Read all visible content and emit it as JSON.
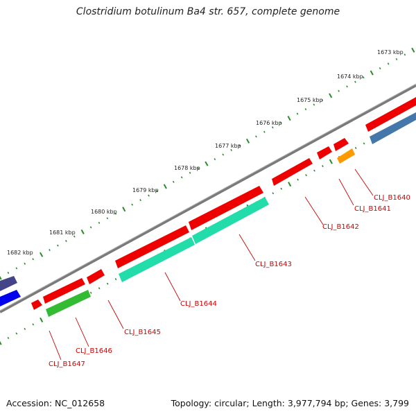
{
  "title": "Clostridium botulinum Ba4 str. 657, complete genome",
  "footer": {
    "accession": "Accession: NC_012658",
    "topology": "Topology: circular; Length: 3,977,794 bp; Genes: 3,799"
  },
  "ruler": {
    "labels": [
      "1673 kbp",
      "1674 kbp",
      "1675 kbp",
      "1676 kbp",
      "1677 kbp",
      "1678 kbp",
      "1679 kbp",
      "1680 kbp",
      "1681 kbp",
      "1682 kbp"
    ]
  },
  "colors": {
    "backbone": "#7a7a7a",
    "tick": "#2a8a2a",
    "gene_red": "#ee0000",
    "gene_teal": "#22ddaa",
    "gene_green": "#33bb33",
    "gene_orange": "#ff9900",
    "gene_steel": "#4477aa",
    "gene_blue": "#0000ee",
    "gene_slate": "#444488",
    "label": "#cc0000"
  },
  "genes": [
    {
      "label": "CLJ_B1640",
      "color": "gene_red"
    },
    {
      "label": "CLJ_B1641",
      "color": "gene_red"
    },
    {
      "label": "CLJ_B1642",
      "color": "gene_red"
    },
    {
      "label": "CLJ_B1643",
      "color": "gene_red"
    },
    {
      "label": "CLJ_B1644",
      "color": "gene_red"
    },
    {
      "label": "CLJ_B1645",
      "color": "gene_red"
    },
    {
      "label": "CLJ_B1646",
      "color": "gene_red"
    },
    {
      "label": "CLJ_B1647",
      "color": "gene_red"
    }
  ]
}
